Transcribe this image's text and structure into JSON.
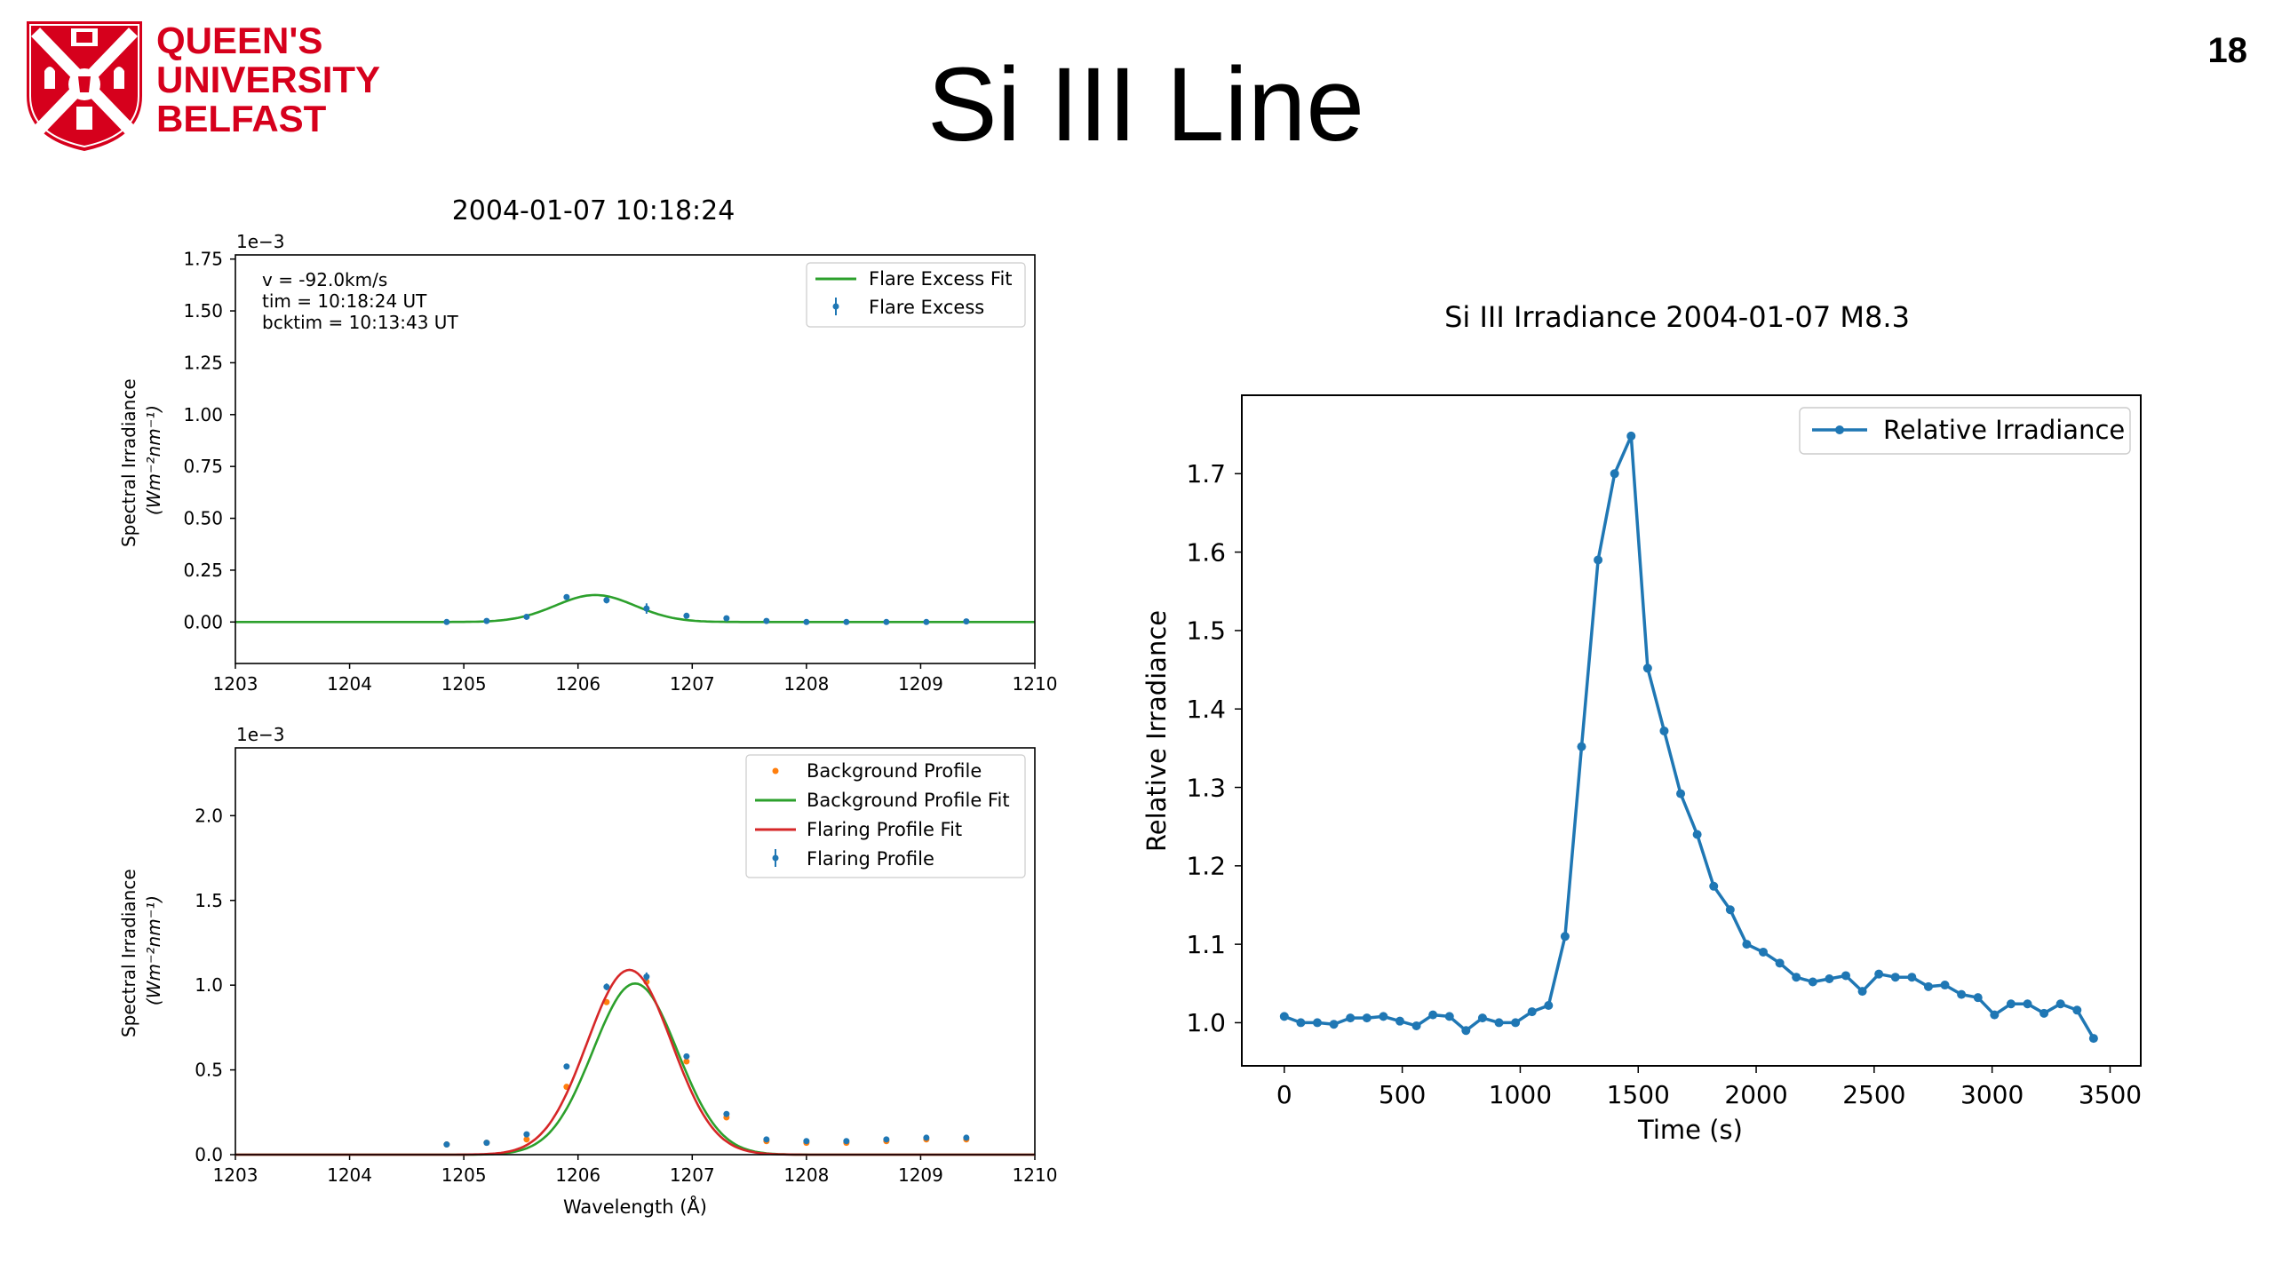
{
  "slide": {
    "title": "Si III Line",
    "page_number": "18",
    "logo": {
      "lines": [
        "QUEEN'S",
        "UNIVERSITY",
        "BELFAST"
      ],
      "color": "#d6001c"
    }
  },
  "chart_data": [
    {
      "type": "line",
      "title": "2004-01-07 10:18:24",
      "exponent_label": "1e−3",
      "ylabel_line1": "Spectral Irradiance",
      "ylabel_line2": "(Wm⁻²nm⁻¹)",
      "xlabel": "",
      "xlim": [
        1203,
        1210
      ],
      "ylim": [
        -0.2,
        1.77
      ],
      "xticks": [
        1203,
        1204,
        1205,
        1206,
        1207,
        1208,
        1209,
        1210
      ],
      "yticks": [
        0.0,
        0.25,
        0.5,
        0.75,
        1.0,
        1.25,
        1.5,
        1.75
      ],
      "ytick_labels": [
        "0.00",
        "0.25",
        "0.50",
        "0.75",
        "1.00",
        "1.25",
        "1.50",
        "1.75"
      ],
      "annotations": [
        "v = -92.0km/s",
        "tim =  10:18:24 UT",
        "bcktim =  10:13:43 UT"
      ],
      "legend": [
        {
          "label": "Flare Excess Fit",
          "color": "#2ca02c",
          "style": "line"
        },
        {
          "label": "Flare Excess",
          "color": "#1f77b4",
          "style": "errorbar"
        }
      ],
      "legend_position": "top-right",
      "series": [
        {
          "name": "Flare Excess Fit",
          "color": "#2ca02c",
          "kind": "gaussian",
          "amplitude": 0.13,
          "center": 1206.15,
          "sigma": 0.35
        },
        {
          "name": "Flare Excess",
          "color": "#1f77b4",
          "kind": "errorbar",
          "x": [
            1204.85,
            1205.2,
            1205.55,
            1205.9,
            1206.25,
            1206.6,
            1206.95,
            1207.3,
            1207.65,
            1208.0,
            1208.35,
            1208.7,
            1209.05,
            1209.4
          ],
          "y": [
            0.0,
            0.005,
            0.025,
            0.12,
            0.105,
            0.065,
            0.03,
            0.018,
            0.005,
            0.0,
            0.0,
            0.0,
            0.0,
            0.003
          ],
          "yerr": [
            0.005,
            0.005,
            0.006,
            0.008,
            0.015,
            0.025,
            0.006,
            0.006,
            0.004,
            0.004,
            0.004,
            0.004,
            0.004,
            0.004
          ]
        }
      ]
    },
    {
      "type": "line",
      "title": "",
      "exponent_label": "1e−3",
      "ylabel_line1": "Spectral Irradiance",
      "ylabel_line2": "(Wm⁻²nm⁻¹)",
      "xlabel": "Wavelength (Å)",
      "xlim": [
        1203,
        1210
      ],
      "ylim": [
        0,
        2.4
      ],
      "xticks": [
        1203,
        1204,
        1205,
        1206,
        1207,
        1208,
        1209,
        1210
      ],
      "yticks": [
        0.0,
        0.5,
        1.0,
        1.5,
        2.0
      ],
      "ytick_labels": [
        "0.0",
        "0.5",
        "1.0",
        "1.5",
        "2.0"
      ],
      "legend": [
        {
          "label": "Background Profile",
          "color": "#ff7f0e",
          "style": "dot"
        },
        {
          "label": "Background Profile Fit",
          "color": "#2ca02c",
          "style": "line"
        },
        {
          "label": "Flaring Profile Fit",
          "color": "#d62728",
          "style": "line"
        },
        {
          "label": "Flaring Profile",
          "color": "#1f77b4",
          "style": "errorbar"
        }
      ],
      "legend_position": "top-right",
      "series": [
        {
          "name": "Background Profile",
          "color": "#ff7f0e",
          "kind": "scatter",
          "x": [
            1204.85,
            1205.2,
            1205.55,
            1205.9,
            1206.25,
            1206.6,
            1206.95,
            1207.3,
            1207.65,
            1208.0,
            1208.35,
            1208.7,
            1209.05,
            1209.4
          ],
          "y": [
            0.06,
            0.07,
            0.09,
            0.4,
            0.9,
            1.02,
            0.55,
            0.22,
            0.08,
            0.07,
            0.07,
            0.08,
            0.09,
            0.09
          ]
        },
        {
          "name": "Background Profile Fit",
          "color": "#2ca02c",
          "kind": "gaussian",
          "amplitude": 1.01,
          "center": 1206.5,
          "sigma": 0.37
        },
        {
          "name": "Flaring Profile Fit",
          "color": "#d62728",
          "kind": "gaussian",
          "amplitude": 1.09,
          "center": 1206.45,
          "sigma": 0.37
        },
        {
          "name": "Flaring Profile",
          "color": "#1f77b4",
          "kind": "errorbar",
          "x": [
            1204.85,
            1205.2,
            1205.55,
            1205.9,
            1206.25,
            1206.6,
            1206.95,
            1207.3,
            1207.65,
            1208.0,
            1208.35,
            1208.7,
            1209.05,
            1209.4
          ],
          "y": [
            0.06,
            0.07,
            0.12,
            0.52,
            0.99,
            1.05,
            0.58,
            0.24,
            0.09,
            0.08,
            0.08,
            0.09,
            0.1,
            0.1
          ],
          "yerr": [
            0.008,
            0.008,
            0.01,
            0.015,
            0.02,
            0.025,
            0.015,
            0.01,
            0.008,
            0.008,
            0.008,
            0.008,
            0.008,
            0.008
          ]
        }
      ]
    },
    {
      "type": "line",
      "title": "Si III Irradiance 2004-01-07 M8.3",
      "xlabel": "Time (s)",
      "ylabel": "Relative Irradiance",
      "xlim": [
        -180,
        3630
      ],
      "ylim": [
        0.945,
        1.8
      ],
      "xticks": [
        0,
        500,
        1000,
        1500,
        2000,
        2500,
        3000,
        3500
      ],
      "yticks": [
        1.0,
        1.1,
        1.2,
        1.3,
        1.4,
        1.5,
        1.6,
        1.7
      ],
      "ytick_labels": [
        "1.0",
        "1.1",
        "1.2",
        "1.3",
        "1.4",
        "1.5",
        "1.6",
        "1.7"
      ],
      "legend": [
        {
          "label": "Relative Irradiance",
          "color": "#1f77b4",
          "style": "line-marker"
        }
      ],
      "legend_position": "top-right",
      "series": [
        {
          "name": "Relative Irradiance",
          "color": "#1f77b4",
          "x": [
            0,
            70,
            140,
            210,
            280,
            350,
            420,
            490,
            560,
            630,
            700,
            770,
            840,
            910,
            980,
            1050,
            1120,
            1190,
            1260,
            1330,
            1400,
            1470,
            1540,
            1610,
            1680,
            1750,
            1820,
            1890,
            1960,
            2030,
            2100,
            2170,
            2240,
            2310,
            2380,
            2450,
            2520,
            2590,
            2660,
            2730,
            2800,
            2870,
            2940,
            3010,
            3080,
            3150,
            3220,
            3290,
            3360,
            3430
          ],
          "y": [
            1.008,
            1.0,
            1.0,
            0.998,
            1.006,
            1.006,
            1.008,
            1.002,
            0.996,
            1.01,
            1.008,
            0.99,
            1.006,
            1.0,
            1.0,
            1.014,
            1.022,
            1.11,
            1.352,
            1.59,
            1.7,
            1.748,
            1.452,
            1.372,
            1.292,
            1.24,
            1.174,
            1.144,
            1.1,
            1.09,
            1.076,
            1.058,
            1.052,
            1.056,
            1.06,
            1.04,
            1.062,
            1.058,
            1.058,
            1.046,
            1.048,
            1.036,
            1.032,
            1.01,
            1.024,
            1.024,
            1.012,
            1.024,
            1.016,
            0.98
          ]
        }
      ]
    }
  ]
}
